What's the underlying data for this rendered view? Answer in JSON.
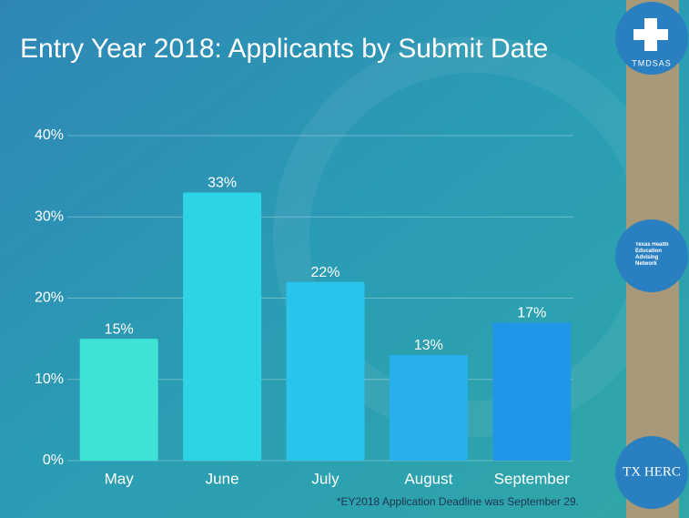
{
  "chart_data": {
    "type": "bar",
    "title": "Entry Year 2018: Applicants by Submit Date",
    "categories": [
      "May",
      "June",
      "July",
      "August",
      "September"
    ],
    "values": [
      15,
      33,
      22,
      13,
      17
    ],
    "value_labels": [
      "15%",
      "33%",
      "22%",
      "13%",
      "17%"
    ],
    "colors": [
      "#3fe3d6",
      "#2dd4e6",
      "#2ac3ec",
      "#28b0ee",
      "#2196e8"
    ],
    "ylim": [
      0,
      40
    ],
    "yticks": [
      {
        "value": 0,
        "label": "0%"
      },
      {
        "value": 10,
        "label": "10%"
      },
      {
        "value": 20,
        "label": "20%"
      },
      {
        "value": 30,
        "label": "30%"
      },
      {
        "value": 40,
        "label": "40%"
      }
    ],
    "grid": true,
    "footnote": "*EY2018 Application Deadline was September 29."
  },
  "logos": [
    "TMDSAS",
    "Texas Health Education Advising Network",
    "TX HERC"
  ]
}
